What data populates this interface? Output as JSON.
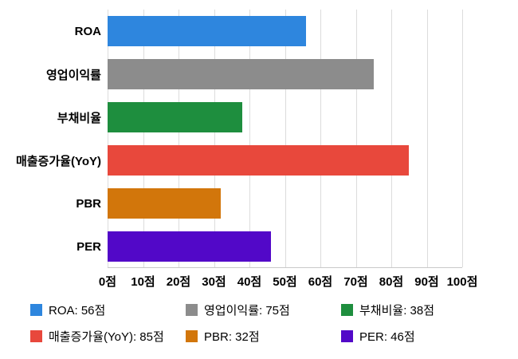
{
  "chart_data": {
    "type": "bar",
    "orientation": "horizontal",
    "title": "",
    "xlabel": "",
    "ylabel": "",
    "xlim": [
      0,
      100
    ],
    "grid": true,
    "unit": "점",
    "categories": [
      "ROA",
      "영업이익률",
      "부채비율",
      "매출증가율(YoY)",
      "PBR",
      "PER"
    ],
    "values": [
      56,
      75,
      38,
      85,
      32,
      46
    ],
    "colors": [
      "#2E86DE",
      "#8C8C8C",
      "#1E8E3E",
      "#E8483C",
      "#D2760B",
      "#5208C8"
    ],
    "x_ticks": [
      "0점",
      "10점",
      "20점",
      "30점",
      "40점",
      "50점",
      "60점",
      "70점",
      "80점",
      "90점",
      "100점"
    ],
    "legend_position": "bottom",
    "legend": [
      {
        "label": "ROA: 56점",
        "color": "#2E86DE"
      },
      {
        "label": "영업이익률: 75점",
        "color": "#8C8C8C"
      },
      {
        "label": "부채비율: 38점",
        "color": "#1E8E3E"
      },
      {
        "label": "매출증가율(YoY): 85점",
        "color": "#E8483C"
      },
      {
        "label": "PBR: 32점",
        "color": "#D2760B"
      },
      {
        "label": "PER: 46점",
        "color": "#5208C8"
      }
    ]
  }
}
